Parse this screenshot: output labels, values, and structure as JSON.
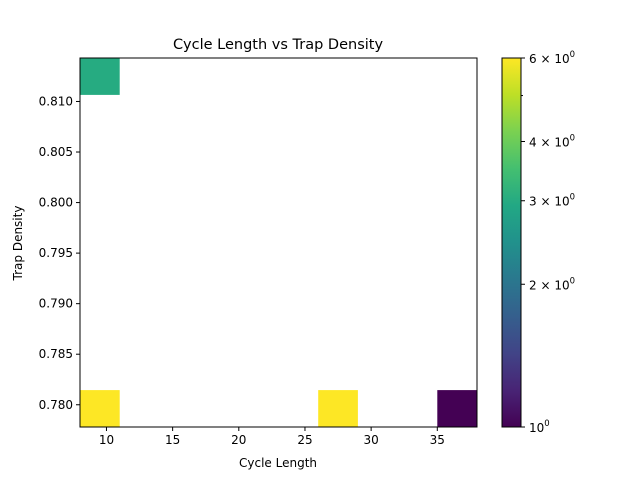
{
  "chart_data": {
    "type": "heatmap",
    "title": "Cycle Length vs Trap Density",
    "xlabel": "Cycle Length",
    "ylabel": "Trap Density",
    "xlim": [
      8,
      38
    ],
    "ylim": [
      0.7778,
      0.8143
    ],
    "x_ticks": [
      10,
      15,
      20,
      25,
      30,
      35
    ],
    "y_ticks": [
      0.78,
      0.785,
      0.79,
      0.795,
      0.8,
      0.805,
      0.81
    ],
    "x_tick_labels": [
      "10",
      "15",
      "20",
      "25",
      "30",
      "35"
    ],
    "y_tick_labels": [
      "0.780",
      "0.785",
      "0.790",
      "0.795",
      "0.800",
      "0.805",
      "0.810"
    ],
    "bin_width": 3,
    "bin_height": 0.00365,
    "cells": [
      {
        "x0": 8,
        "y0": 0.81065,
        "count": 3
      },
      {
        "x0": 8,
        "y0": 0.7778,
        "count": 6
      },
      {
        "x0": 26,
        "y0": 0.7778,
        "count": 6
      },
      {
        "x0": 35,
        "y0": 0.7778,
        "count": 1
      }
    ],
    "colorbar": {
      "scale": "log",
      "range": [
        1,
        6
      ],
      "colormap": "viridis",
      "major_ticks": [
        1,
        2,
        3,
        4,
        6
      ],
      "minor_ticks": [
        5
      ],
      "tick_labels": [
        {
          "value": 1,
          "base": "10",
          "exp": "0"
        },
        {
          "value": 2,
          "base": "2 × 10",
          "exp": "0"
        },
        {
          "value": 3,
          "base": "3 × 10",
          "exp": "0"
        },
        {
          "value": 4,
          "base": "4 × 10",
          "exp": "0"
        },
        {
          "value": 6,
          "base": "6 × 10",
          "exp": "0"
        }
      ]
    },
    "grid": false
  }
}
